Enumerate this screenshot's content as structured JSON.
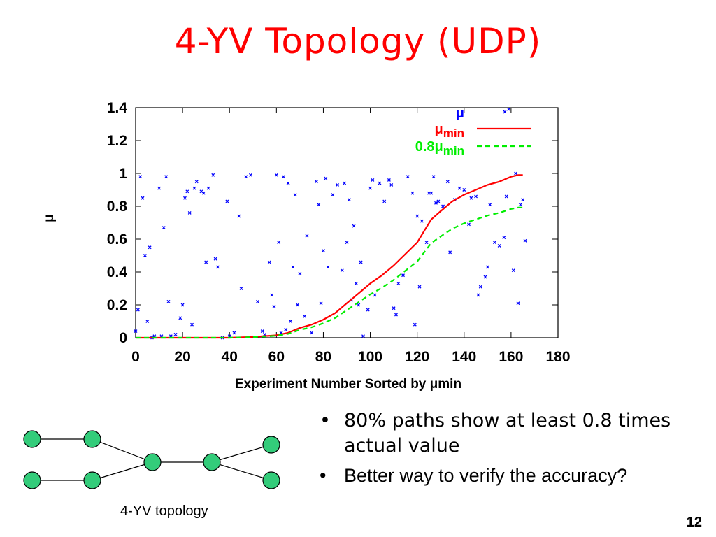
{
  "slide": {
    "title": "4-YV Topology (UDP)",
    "bullets": [
      "80% paths show at least 0.8 times actual value",
      "Better way to verify the accuracy?"
    ],
    "topology_caption": "4-YV topology",
    "page_number": "12",
    "colors": {
      "title": "#ff0000",
      "node_fill": "#33cc7a",
      "mu": "#0000ff",
      "mu_min": "#ff0000",
      "mu_min_08": "#00ee00"
    }
  },
  "chart_data": {
    "type": "line",
    "title": "",
    "xlabel": "Experiment Number Sorted by μmin",
    "ylabel": "μ",
    "xlim": [
      0,
      180
    ],
    "ylim": [
      0,
      1.4
    ],
    "x_ticks": [
      "0",
      "20",
      "40",
      "60",
      "80",
      "100",
      "120",
      "140",
      "160",
      "180"
    ],
    "y_ticks": [
      "0",
      "0.2",
      "0.4",
      "0.6",
      "0.8",
      "1",
      "1.2",
      "1.4"
    ],
    "x_tick_values": [
      0,
      20,
      40,
      60,
      80,
      100,
      120,
      140,
      160,
      180
    ],
    "y_tick_values": [
      0,
      0.2,
      0.4,
      0.6,
      0.8,
      1,
      1.2,
      1.4
    ],
    "legend_position": "top-right",
    "series": [
      {
        "name": "μ",
        "legend_main": "μ",
        "legend_sub": "",
        "style": "points",
        "color": "#0000ff",
        "points": [
          [
            0,
            0.04
          ],
          [
            1,
            0.17
          ],
          [
            2,
            0.98
          ],
          [
            3,
            0.85
          ],
          [
            4,
            0.5
          ],
          [
            5,
            0.1
          ],
          [
            6,
            0.55
          ],
          [
            7,
            0
          ],
          [
            8,
            0.01
          ],
          [
            10,
            0.91
          ],
          [
            11,
            0.01
          ],
          [
            12,
            0.67
          ],
          [
            13,
            0.98
          ],
          [
            14,
            0.22
          ],
          [
            15,
            0.01
          ],
          [
            17,
            0.02
          ],
          [
            19,
            0.12
          ],
          [
            20,
            0.2
          ],
          [
            21,
            0.85
          ],
          [
            22,
            0.89
          ],
          [
            23,
            0.76
          ],
          [
            24,
            0.08
          ],
          [
            25,
            0.91
          ],
          [
            26,
            0.95
          ],
          [
            28,
            0.89
          ],
          [
            29,
            0.88
          ],
          [
            30,
            0.46
          ],
          [
            31,
            0.91
          ],
          [
            33,
            0.99
          ],
          [
            34,
            0.48
          ],
          [
            35,
            0.43
          ],
          [
            37,
            0
          ],
          [
            39,
            0.83
          ],
          [
            40,
            0.01
          ],
          [
            42,
            0.03
          ],
          [
            44,
            0.74
          ],
          [
            45,
            0.3
          ],
          [
            47,
            0.98
          ],
          [
            49,
            0.99
          ],
          [
            52,
            0.22
          ],
          [
            54,
            0.04
          ],
          [
            55,
            0.02
          ],
          [
            57,
            0.46
          ],
          [
            58,
            0.26
          ],
          [
            59,
            0.19
          ],
          [
            60,
            0.99
          ],
          [
            61,
            0.58
          ],
          [
            62,
            0.03
          ],
          [
            63,
            0.98
          ],
          [
            64,
            0.05
          ],
          [
            65,
            0.94
          ],
          [
            66,
            0.1
          ],
          [
            67,
            0.43
          ],
          [
            68,
            0.87
          ],
          [
            69,
            0.2
          ],
          [
            70,
            0.39
          ],
          [
            72,
            0.13
          ],
          [
            73,
            0.62
          ],
          [
            75,
            0.03
          ],
          [
            77,
            0.95
          ],
          [
            78,
            0.81
          ],
          [
            79,
            0.21
          ],
          [
            80,
            0.53
          ],
          [
            81,
            0.97
          ],
          [
            82,
            0.43
          ],
          [
            84,
            0.87
          ],
          [
            86,
            0.93
          ],
          [
            88,
            0.41
          ],
          [
            89,
            0.94
          ],
          [
            90,
            0.58
          ],
          [
            91,
            0.84
          ],
          [
            92,
            0.23
          ],
          [
            93,
            0.68
          ],
          [
            94,
            0.33
          ],
          [
            95,
            0.2
          ],
          [
            96,
            0.46
          ],
          [
            97,
            0.01
          ],
          [
            99,
            0.17
          ],
          [
            100,
            0.91
          ],
          [
            101,
            0.96
          ],
          [
            102,
            0.26
          ],
          [
            104,
            0.94
          ],
          [
            106,
            0.83
          ],
          [
            108,
            0.96
          ],
          [
            109,
            0.93
          ],
          [
            110,
            0.18
          ],
          [
            111,
            0.14
          ],
          [
            112,
            0.33
          ],
          [
            114,
            0.38
          ],
          [
            116,
            0.98
          ],
          [
            118,
            0.88
          ],
          [
            119,
            0.08
          ],
          [
            120,
            0.74
          ],
          [
            121,
            0.31
          ],
          [
            122,
            0.71
          ],
          [
            124,
            0.58
          ],
          [
            125,
            0.88
          ],
          [
            126,
            0.88
          ],
          [
            127,
            0.98
          ],
          [
            128,
            0.82
          ],
          [
            129,
            0.83
          ],
          [
            131,
            0.8
          ],
          [
            133,
            0.95
          ],
          [
            134,
            0.52
          ],
          [
            136,
            0.84
          ],
          [
            138,
            0.91
          ],
          [
            140,
            0.9
          ],
          [
            142,
            0.69
          ],
          [
            143,
            0.85
          ],
          [
            145,
            0.86
          ],
          [
            146,
            0.26
          ],
          [
            147,
            0.31
          ],
          [
            149,
            0.37
          ],
          [
            150,
            0.43
          ],
          [
            151,
            0.81
          ],
          [
            153,
            0.58
          ],
          [
            155,
            0.56
          ],
          [
            157,
            0.61
          ],
          [
            158,
            0.86
          ],
          [
            159,
            1.39
          ],
          [
            161,
            0.41
          ],
          [
            162,
            1.0
          ],
          [
            163,
            0.21
          ],
          [
            164,
            0.81
          ],
          [
            165,
            0.84
          ],
          [
            166,
            0.59
          ]
        ]
      },
      {
        "name": "μmin",
        "legend_main": "μ",
        "legend_sub": "min",
        "style": "solid",
        "color": "#ff0000",
        "points": [
          [
            0,
            0
          ],
          [
            20,
            0
          ],
          [
            40,
            0
          ],
          [
            50,
            0.005
          ],
          [
            60,
            0.015
          ],
          [
            65,
            0.03
          ],
          [
            70,
            0.06
          ],
          [
            75,
            0.08
          ],
          [
            80,
            0.11
          ],
          [
            85,
            0.15
          ],
          [
            90,
            0.21
          ],
          [
            95,
            0.27
          ],
          [
            100,
            0.33
          ],
          [
            105,
            0.38
          ],
          [
            110,
            0.44
          ],
          [
            115,
            0.51
          ],
          [
            120,
            0.58
          ],
          [
            123,
            0.65
          ],
          [
            126,
            0.72
          ],
          [
            130,
            0.77
          ],
          [
            135,
            0.83
          ],
          [
            140,
            0.87
          ],
          [
            145,
            0.9
          ],
          [
            150,
            0.93
          ],
          [
            155,
            0.95
          ],
          [
            160,
            0.98
          ],
          [
            163,
            0.99
          ],
          [
            165,
            0.99
          ]
        ]
      },
      {
        "name": "0.8μmin",
        "legend_main": "0.8μ",
        "legend_sub": "min",
        "style": "dashed",
        "color": "#00ee00",
        "points": [
          [
            0,
            0
          ],
          [
            20,
            0
          ],
          [
            40,
            0
          ],
          [
            50,
            0.004
          ],
          [
            60,
            0.012
          ],
          [
            65,
            0.024
          ],
          [
            70,
            0.048
          ],
          [
            75,
            0.064
          ],
          [
            80,
            0.088
          ],
          [
            85,
            0.12
          ],
          [
            90,
            0.168
          ],
          [
            95,
            0.216
          ],
          [
            100,
            0.264
          ],
          [
            105,
            0.304
          ],
          [
            110,
            0.352
          ],
          [
            115,
            0.408
          ],
          [
            120,
            0.464
          ],
          [
            123,
            0.52
          ],
          [
            126,
            0.576
          ],
          [
            130,
            0.616
          ],
          [
            135,
            0.664
          ],
          [
            140,
            0.696
          ],
          [
            145,
            0.72
          ],
          [
            150,
            0.744
          ],
          [
            155,
            0.76
          ],
          [
            160,
            0.784
          ],
          [
            163,
            0.792
          ],
          [
            165,
            0.792
          ]
        ]
      }
    ]
  }
}
